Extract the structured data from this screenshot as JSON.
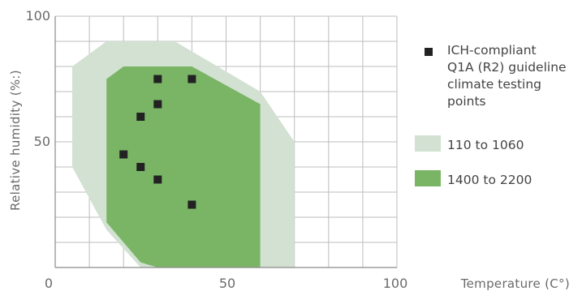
{
  "chart_data": {
    "type": "area",
    "xlabel": "Temperature (C°)",
    "ylabel": "Relative humidity (%:)",
    "xlim": [
      0,
      100
    ],
    "ylim": [
      0,
      100
    ],
    "x_ticks": [
      "0",
      "50",
      "100"
    ],
    "y_ticks": [
      "100",
      "50"
    ],
    "grid": true,
    "legend_position": "right",
    "series": [
      {
        "name": "110 to 1060",
        "type": "area",
        "color": "#d2e1d2",
        "polygon": [
          [
            5,
            40
          ],
          [
            5,
            80
          ],
          [
            15,
            90
          ],
          [
            35,
            90
          ],
          [
            60,
            70
          ],
          [
            70,
            50
          ],
          [
            70,
            0
          ],
          [
            25,
            0
          ],
          [
            15,
            15
          ]
        ]
      },
      {
        "name": "1400 to 2200",
        "type": "area",
        "color": "#7ab566",
        "polygon": [
          [
            15,
            75
          ],
          [
            20,
            80
          ],
          [
            40,
            80
          ],
          [
            60,
            65
          ],
          [
            60,
            0
          ],
          [
            30,
            0
          ],
          [
            25,
            2
          ],
          [
            20,
            10
          ],
          [
            15,
            18
          ]
        ]
      },
      {
        "name": "ICH-compliant Q1A (R2) guideline climate testing points",
        "type": "scatter",
        "color": "#222222",
        "points": [
          [
            30,
            75
          ],
          [
            40,
            75
          ],
          [
            30,
            65
          ],
          [
            25,
            60
          ],
          [
            20,
            45
          ],
          [
            25,
            40
          ],
          [
            30,
            35
          ],
          [
            40,
            25
          ]
        ]
      }
    ]
  }
}
